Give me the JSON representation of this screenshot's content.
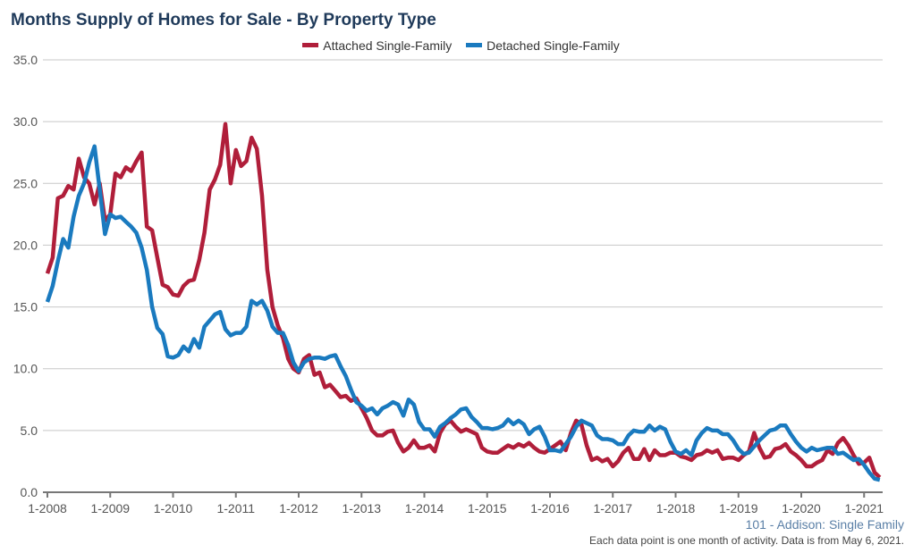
{
  "chart_data": {
    "type": "line",
    "title": "Months Supply of Homes for Sale - By Property Type",
    "x_start": "2008-01",
    "x_end": "2021-04",
    "x_ticks": [
      "1-2008",
      "1-2009",
      "1-2010",
      "1-2011",
      "1-2012",
      "1-2013",
      "1-2014",
      "1-2015",
      "1-2016",
      "1-2017",
      "1-2018",
      "1-2019",
      "1-2020",
      "1-2021"
    ],
    "y_ticks": [
      "0.0",
      "5.0",
      "10.0",
      "15.0",
      "20.0",
      "25.0",
      "30.0",
      "35.0"
    ],
    "ylim": [
      0,
      35
    ],
    "grid": true,
    "legend_placement": "top",
    "series": [
      {
        "name": "Attached Single-Family",
        "color": "#b01e3a",
        "values": [
          17.7,
          19,
          23.8,
          24,
          24.8,
          24.5,
          27,
          25.5,
          25,
          23.3,
          25,
          22,
          22.5,
          25.8,
          25.5,
          26.3,
          26,
          26.8,
          27.5,
          21.5,
          21.2,
          19,
          16.8,
          16.6,
          16,
          15.9,
          16.7,
          17.1,
          17.2,
          18.8,
          21,
          24.5,
          25.3,
          26.5,
          29.8,
          25,
          27.7,
          26.4,
          26.8,
          28.7,
          27.8,
          24,
          18,
          15,
          13.5,
          12.5,
          10.8,
          10,
          9.7,
          10.8,
          11.1,
          9.5,
          9.7,
          8.5,
          8.7,
          8.2,
          7.7,
          7.8,
          7.4,
          7.6,
          6.8,
          6,
          5,
          4.6,
          4.6,
          4.9,
          5,
          4,
          3.3,
          3.6,
          4.2,
          3.6,
          3.6,
          3.8,
          3.3,
          4.8,
          5.5,
          5.8,
          5.3,
          4.9,
          5.1,
          4.9,
          4.7,
          3.6,
          3.3,
          3.2,
          3.2,
          3.5,
          3.8,
          3.6,
          3.9,
          3.7,
          4,
          3.6,
          3.3,
          3.2,
          3.5,
          3.8,
          4.1,
          3.4,
          4.8,
          5.8,
          5.5,
          3.8,
          2.6,
          2.8,
          2.5,
          2.7,
          2.1,
          2.5,
          3.2,
          3.6,
          2.7,
          2.7,
          3.5,
          2.6,
          3.4,
          3,
          3,
          3.2,
          3.2,
          2.9,
          2.8,
          2.6,
          3,
          3.1,
          3.4,
          3.2,
          3.4,
          2.7,
          2.8,
          2.8,
          2.6,
          3,
          3.3,
          4.8,
          3.6,
          2.8,
          2.9,
          3.5,
          3.6,
          3.9,
          3.3,
          3,
          2.6,
          2.1,
          2.1,
          2.4,
          2.6,
          3.4,
          3.1,
          4,
          4.4,
          3.8,
          3,
          2.3,
          2.4,
          2.8,
          1.6,
          1.2
        ]
      },
      {
        "name": "Detached Single-Family",
        "color": "#1a7abf",
        "values": [
          15.4,
          16.7,
          18.7,
          20.5,
          19.8,
          22.3,
          24,
          25,
          26.7,
          28,
          24.5,
          20.9,
          22.5,
          22.2,
          22.3,
          21.9,
          21.5,
          21,
          19.8,
          18,
          15,
          13.3,
          12.8,
          11,
          10.9,
          11.1,
          11.8,
          11.4,
          12.4,
          11.7,
          13.4,
          13.9,
          14.4,
          14.6,
          13.2,
          12.7,
          12.9,
          12.9,
          13.4,
          15.5,
          15.2,
          15.5,
          14.7,
          13.4,
          12.9,
          12.9,
          11.9,
          10.5,
          9.8,
          10.5,
          10.8,
          10.9,
          10.9,
          10.8,
          11,
          11.1,
          10.2,
          9.4,
          8.3,
          7.3,
          7,
          6.6,
          6.8,
          6.3,
          6.8,
          7,
          7.3,
          7.1,
          6.2,
          7.5,
          7.1,
          5.7,
          5.1,
          5.1,
          4.5,
          5.3,
          5.6,
          6,
          6.3,
          6.7,
          6.8,
          6.1,
          5.7,
          5.2,
          5.2,
          5.1,
          5.2,
          5.4,
          5.9,
          5.5,
          5.8,
          5.5,
          4.7,
          5.1,
          5.3,
          4.5,
          3.4,
          3.4,
          3.3,
          3.9,
          4.5,
          5.3,
          5.8,
          5.6,
          5.4,
          4.6,
          4.3,
          4.3,
          4.2,
          3.9,
          3.9,
          4.6,
          5,
          4.9,
          4.9,
          5.4,
          5,
          5.3,
          5.1,
          4.1,
          3.3,
          3.1,
          3.4,
          3,
          4.2,
          4.8,
          5.2,
          5,
          5,
          4.7,
          4.7,
          4.2,
          3.5,
          3.1,
          3.2,
          3.7,
          4.2,
          4.6,
          5,
          5.1,
          5.4,
          5.4,
          4.7,
          4.1,
          3.6,
          3.3,
          3.6,
          3.4,
          3.5,
          3.6,
          3.6,
          3.1,
          3.2,
          2.9,
          2.6,
          2.7,
          2.2,
          1.6,
          1.1,
          1.0
        ]
      }
    ],
    "source": "101 - Addison: Single Family",
    "note": "Each data point is one month of activity. Data is from May 6, 2021."
  }
}
